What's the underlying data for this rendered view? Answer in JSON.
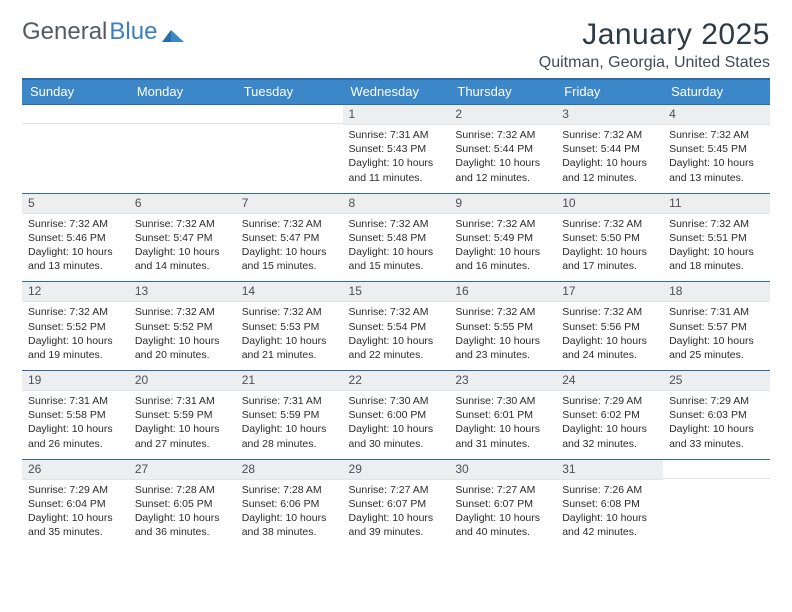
{
  "logo": {
    "text1": "General",
    "text2": "Blue"
  },
  "title": "January 2025",
  "subtitle": "Quitman, Georgia, United States",
  "colors": {
    "header_bg": "#3c87c8",
    "header_text": "#ffffff",
    "rule": "#2f6aa8",
    "daynum_bg": "#eceef0",
    "text": "#2b2b2b",
    "logo_gray": "#555a5f",
    "logo_blue": "#3c7fc0"
  },
  "weekdays": [
    "Sunday",
    "Monday",
    "Tuesday",
    "Wednesday",
    "Thursday",
    "Friday",
    "Saturday"
  ],
  "layout": {
    "first_weekday_index": 3,
    "days_in_month": 31
  },
  "days": {
    "1": {
      "sunrise": "7:31 AM",
      "sunset": "5:43 PM",
      "daylight": "10 hours and 11 minutes."
    },
    "2": {
      "sunrise": "7:32 AM",
      "sunset": "5:44 PM",
      "daylight": "10 hours and 12 minutes."
    },
    "3": {
      "sunrise": "7:32 AM",
      "sunset": "5:44 PM",
      "daylight": "10 hours and 12 minutes."
    },
    "4": {
      "sunrise": "7:32 AM",
      "sunset": "5:45 PM",
      "daylight": "10 hours and 13 minutes."
    },
    "5": {
      "sunrise": "7:32 AM",
      "sunset": "5:46 PM",
      "daylight": "10 hours and 13 minutes."
    },
    "6": {
      "sunrise": "7:32 AM",
      "sunset": "5:47 PM",
      "daylight": "10 hours and 14 minutes."
    },
    "7": {
      "sunrise": "7:32 AM",
      "sunset": "5:47 PM",
      "daylight": "10 hours and 15 minutes."
    },
    "8": {
      "sunrise": "7:32 AM",
      "sunset": "5:48 PM",
      "daylight": "10 hours and 15 minutes."
    },
    "9": {
      "sunrise": "7:32 AM",
      "sunset": "5:49 PM",
      "daylight": "10 hours and 16 minutes."
    },
    "10": {
      "sunrise": "7:32 AM",
      "sunset": "5:50 PM",
      "daylight": "10 hours and 17 minutes."
    },
    "11": {
      "sunrise": "7:32 AM",
      "sunset": "5:51 PM",
      "daylight": "10 hours and 18 minutes."
    },
    "12": {
      "sunrise": "7:32 AM",
      "sunset": "5:52 PM",
      "daylight": "10 hours and 19 minutes."
    },
    "13": {
      "sunrise": "7:32 AM",
      "sunset": "5:52 PM",
      "daylight": "10 hours and 20 minutes."
    },
    "14": {
      "sunrise": "7:32 AM",
      "sunset": "5:53 PM",
      "daylight": "10 hours and 21 minutes."
    },
    "15": {
      "sunrise": "7:32 AM",
      "sunset": "5:54 PM",
      "daylight": "10 hours and 22 minutes."
    },
    "16": {
      "sunrise": "7:32 AM",
      "sunset": "5:55 PM",
      "daylight": "10 hours and 23 minutes."
    },
    "17": {
      "sunrise": "7:32 AM",
      "sunset": "5:56 PM",
      "daylight": "10 hours and 24 minutes."
    },
    "18": {
      "sunrise": "7:31 AM",
      "sunset": "5:57 PM",
      "daylight": "10 hours and 25 minutes."
    },
    "19": {
      "sunrise": "7:31 AM",
      "sunset": "5:58 PM",
      "daylight": "10 hours and 26 minutes."
    },
    "20": {
      "sunrise": "7:31 AM",
      "sunset": "5:59 PM",
      "daylight": "10 hours and 27 minutes."
    },
    "21": {
      "sunrise": "7:31 AM",
      "sunset": "5:59 PM",
      "daylight": "10 hours and 28 minutes."
    },
    "22": {
      "sunrise": "7:30 AM",
      "sunset": "6:00 PM",
      "daylight": "10 hours and 30 minutes."
    },
    "23": {
      "sunrise": "7:30 AM",
      "sunset": "6:01 PM",
      "daylight": "10 hours and 31 minutes."
    },
    "24": {
      "sunrise": "7:29 AM",
      "sunset": "6:02 PM",
      "daylight": "10 hours and 32 minutes."
    },
    "25": {
      "sunrise": "7:29 AM",
      "sunset": "6:03 PM",
      "daylight": "10 hours and 33 minutes."
    },
    "26": {
      "sunrise": "7:29 AM",
      "sunset": "6:04 PM",
      "daylight": "10 hours and 35 minutes."
    },
    "27": {
      "sunrise": "7:28 AM",
      "sunset": "6:05 PM",
      "daylight": "10 hours and 36 minutes."
    },
    "28": {
      "sunrise": "7:28 AM",
      "sunset": "6:06 PM",
      "daylight": "10 hours and 38 minutes."
    },
    "29": {
      "sunrise": "7:27 AM",
      "sunset": "6:07 PM",
      "daylight": "10 hours and 39 minutes."
    },
    "30": {
      "sunrise": "7:27 AM",
      "sunset": "6:07 PM",
      "daylight": "10 hours and 40 minutes."
    },
    "31": {
      "sunrise": "7:26 AM",
      "sunset": "6:08 PM",
      "daylight": "10 hours and 42 minutes."
    }
  },
  "labels": {
    "sunrise": "Sunrise:",
    "sunset": "Sunset:",
    "daylight": "Daylight:"
  }
}
